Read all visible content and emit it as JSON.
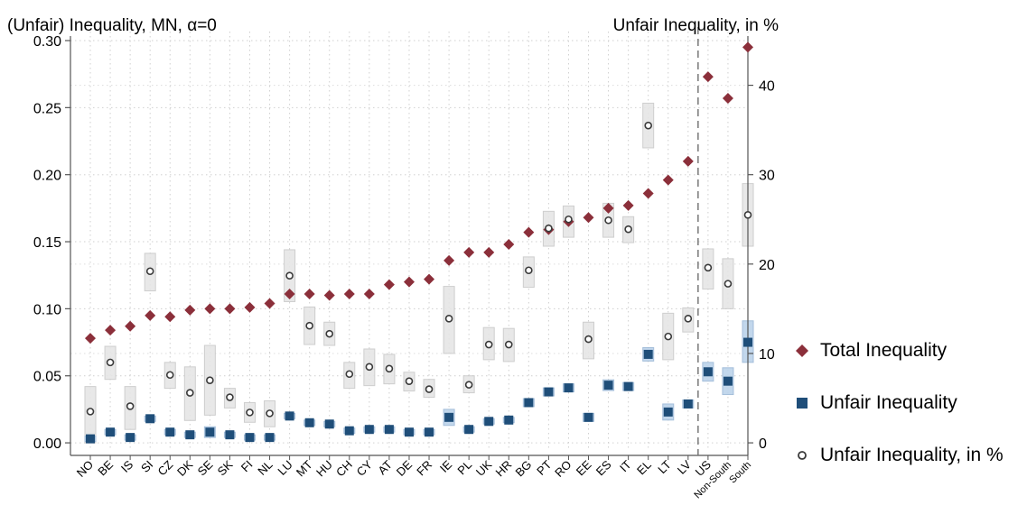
{
  "chart_data": {
    "type": "scatter",
    "title_left": "(Unfair) Inequality, MN, α=0",
    "title_right": "Unfair Inequality, in %",
    "categories": [
      "NO",
      "BE",
      "IS",
      "SI",
      "CZ",
      "DK",
      "SE",
      "SK",
      "FI",
      "NL",
      "LU",
      "MT",
      "HU",
      "CH",
      "CY",
      "AT",
      "DE",
      "FR",
      "IE",
      "PL",
      "UK",
      "HR",
      "BG",
      "PT",
      "RO",
      "EE",
      "ES",
      "IT",
      "EL",
      "LT",
      "LV",
      "US",
      "Non-South",
      "South"
    ],
    "left_axis": {
      "ylim": [
        -0.006,
        0.3
      ],
      "ticks": [
        "0.00",
        "0.05",
        "0.10",
        "0.15",
        "0.20",
        "0.25",
        "0.30"
      ],
      "tick_values": [
        0,
        0.05,
        0.1,
        0.15,
        0.2,
        0.25,
        0.3
      ]
    },
    "right_axis": {
      "ylim": [
        -0.9,
        45.0
      ],
      "ticks": [
        "0",
        "10",
        "20",
        "30",
        "40"
      ],
      "tick_values": [
        0,
        10,
        20,
        30,
        40
      ]
    },
    "series": [
      {
        "name": "Total Inequality",
        "axis": "left",
        "color": "#8b2f3a",
        "values": [
          0.078,
          0.084,
          0.087,
          0.095,
          0.094,
          0.099,
          0.1,
          0.1,
          0.101,
          0.104,
          0.111,
          0.111,
          0.11,
          0.111,
          0.111,
          0.118,
          0.12,
          0.122,
          0.136,
          0.142,
          0.142,
          0.148,
          0.157,
          0.159,
          0.165,
          0.168,
          0.175,
          0.177,
          0.186,
          0.196,
          0.21,
          0.273,
          0.257,
          0.295
        ],
        "ci": [
          null,
          null,
          null,
          null,
          null,
          null,
          null,
          null,
          null,
          null,
          null,
          null,
          null,
          null,
          null,
          null,
          null,
          null,
          null,
          null,
          null,
          null,
          null,
          null,
          null,
          null,
          null,
          null,
          null,
          null,
          null,
          null,
          null,
          null
        ]
      },
      {
        "name": "Unfair Inequality",
        "axis": "left",
        "color": "#1f4e79",
        "values": [
          0.003,
          0.008,
          0.004,
          0.018,
          0.008,
          0.006,
          0.008,
          0.006,
          0.004,
          0.004,
          0.02,
          0.015,
          0.014,
          0.009,
          0.01,
          0.01,
          0.008,
          0.008,
          0.019,
          0.01,
          0.016,
          0.017,
          0.03,
          0.038,
          0.041,
          0.019,
          0.043,
          0.042,
          0.066,
          0.023,
          0.029,
          0.053,
          0.046,
          0.075
        ],
        "ci_low": [
          0.001,
          0.006,
          0.002,
          0.016,
          0.006,
          0.004,
          0.004,
          0.004,
          0.002,
          0.002,
          0.018,
          0.013,
          0.012,
          0.007,
          0.008,
          0.008,
          0.006,
          0.006,
          0.013,
          0.008,
          0.014,
          0.015,
          0.027,
          0.035,
          0.038,
          0.016,
          0.039,
          0.039,
          0.061,
          0.017,
          0.026,
          0.046,
          0.036,
          0.06
        ],
        "ci_high": [
          0.005,
          0.01,
          0.006,
          0.02,
          0.01,
          0.008,
          0.012,
          0.008,
          0.006,
          0.006,
          0.022,
          0.017,
          0.016,
          0.011,
          0.012,
          0.012,
          0.01,
          0.01,
          0.025,
          0.012,
          0.018,
          0.019,
          0.033,
          0.041,
          0.044,
          0.022,
          0.047,
          0.045,
          0.071,
          0.029,
          0.032,
          0.06,
          0.056,
          0.091
        ]
      },
      {
        "name": "Unfair Inequality, in %",
        "axis": "right",
        "color": "#3a3a3a",
        "values": [
          3.5,
          9.0,
          4.1,
          19.2,
          7.6,
          5.6,
          7.0,
          5.1,
          3.4,
          3.3,
          18.7,
          13.1,
          12.2,
          7.7,
          8.5,
          8.3,
          6.9,
          6.0,
          13.9,
          6.5,
          11.0,
          11.0,
          19.3,
          24.0,
          25.0,
          11.6,
          24.9,
          23.9,
          35.5,
          11.9,
          13.9,
          19.6,
          17.8,
          25.5
        ],
        "ci_low": [
          0.0,
          7.1,
          1.5,
          17.0,
          6.1,
          2.5,
          3.1,
          3.9,
          2.3,
          1.8,
          15.8,
          11.0,
          10.9,
          6.1,
          6.4,
          6.6,
          5.8,
          5.1,
          10.0,
          5.6,
          9.3,
          9.1,
          17.4,
          22.0,
          23.0,
          9.4,
          23.0,
          22.4,
          33.0,
          9.3,
          12.4,
          17.2,
          15.0,
          22.0
        ],
        "ci_high": [
          6.3,
          10.8,
          6.3,
          21.2,
          9.0,
          8.5,
          10.9,
          6.1,
          4.5,
          4.7,
          21.6,
          15.2,
          13.5,
          9.0,
          10.5,
          9.9,
          7.9,
          7.1,
          17.5,
          7.5,
          12.9,
          12.8,
          20.8,
          25.9,
          26.5,
          13.5,
          26.8,
          25.3,
          38.0,
          14.5,
          15.1,
          21.7,
          20.6,
          29.0
        ]
      }
    ],
    "separator_after_index": 30,
    "grid": true,
    "legend_position": "right"
  }
}
